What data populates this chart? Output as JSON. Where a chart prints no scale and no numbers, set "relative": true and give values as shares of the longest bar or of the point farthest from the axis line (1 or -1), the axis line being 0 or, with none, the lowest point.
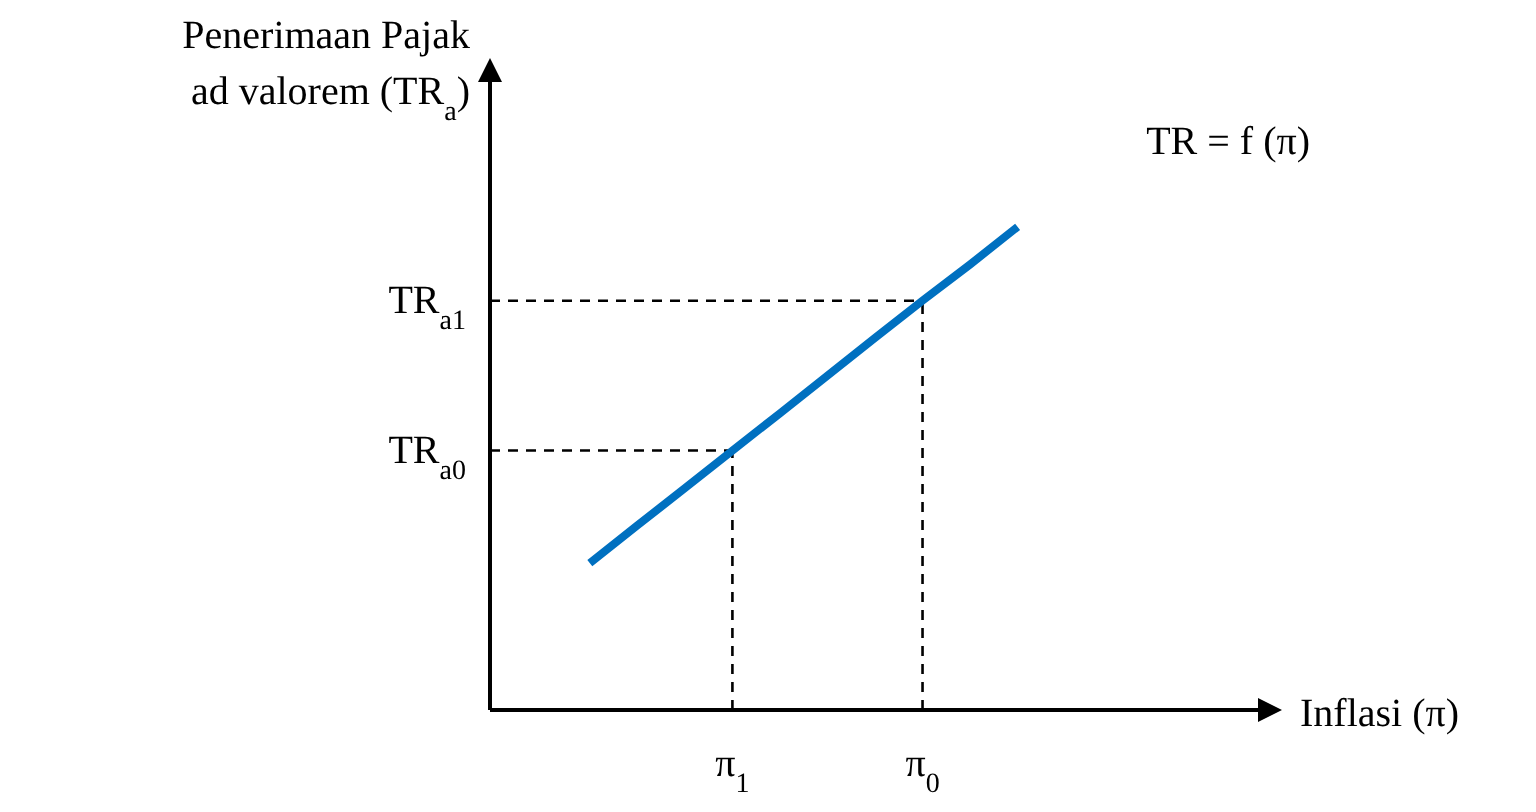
{
  "chart_data": {
    "type": "line",
    "relative": true,
    "ylabel": "Penerimaan Pajak ad valorem (TR$_{a}$)",
    "xlabel": "Inflasi (π)",
    "annotations": [
      "TR = f (π)"
    ],
    "categories": [
      null,
      null,
      null,
      "π$_{1}$",
      null,
      null,
      null,
      "π$_{0}$",
      null,
      null,
      null,
      null,
      null
    ],
    "series": [
      {
        "color": "#0070c0",
        "values": [
          0.304,
          0.382,
          0.459,
          0.537,
          0.614,
          0.692,
          0.77,
          0.847,
          0.922,
          1.0,
          null,
          null,
          null
        ]
      }
    ],
    "ref_lines": [
      {
        "axis": "y",
        "value": 0.537,
        "label": "TR$_{a0}$",
        "color": "#000000",
        "line_style": "dashed"
      },
      {
        "axis": "y",
        "value": 0.847,
        "label": "TR$_{a1}$",
        "color": "#000000",
        "line_style": "dashed"
      },
      {
        "axis": "x",
        "value": "π$_{1}$",
        "color": "#000000",
        "line_style": "dashed"
      },
      {
        "axis": "x",
        "value": "π$_{0}$",
        "color": "#000000",
        "line_style": "dashed"
      }
    ]
  }
}
